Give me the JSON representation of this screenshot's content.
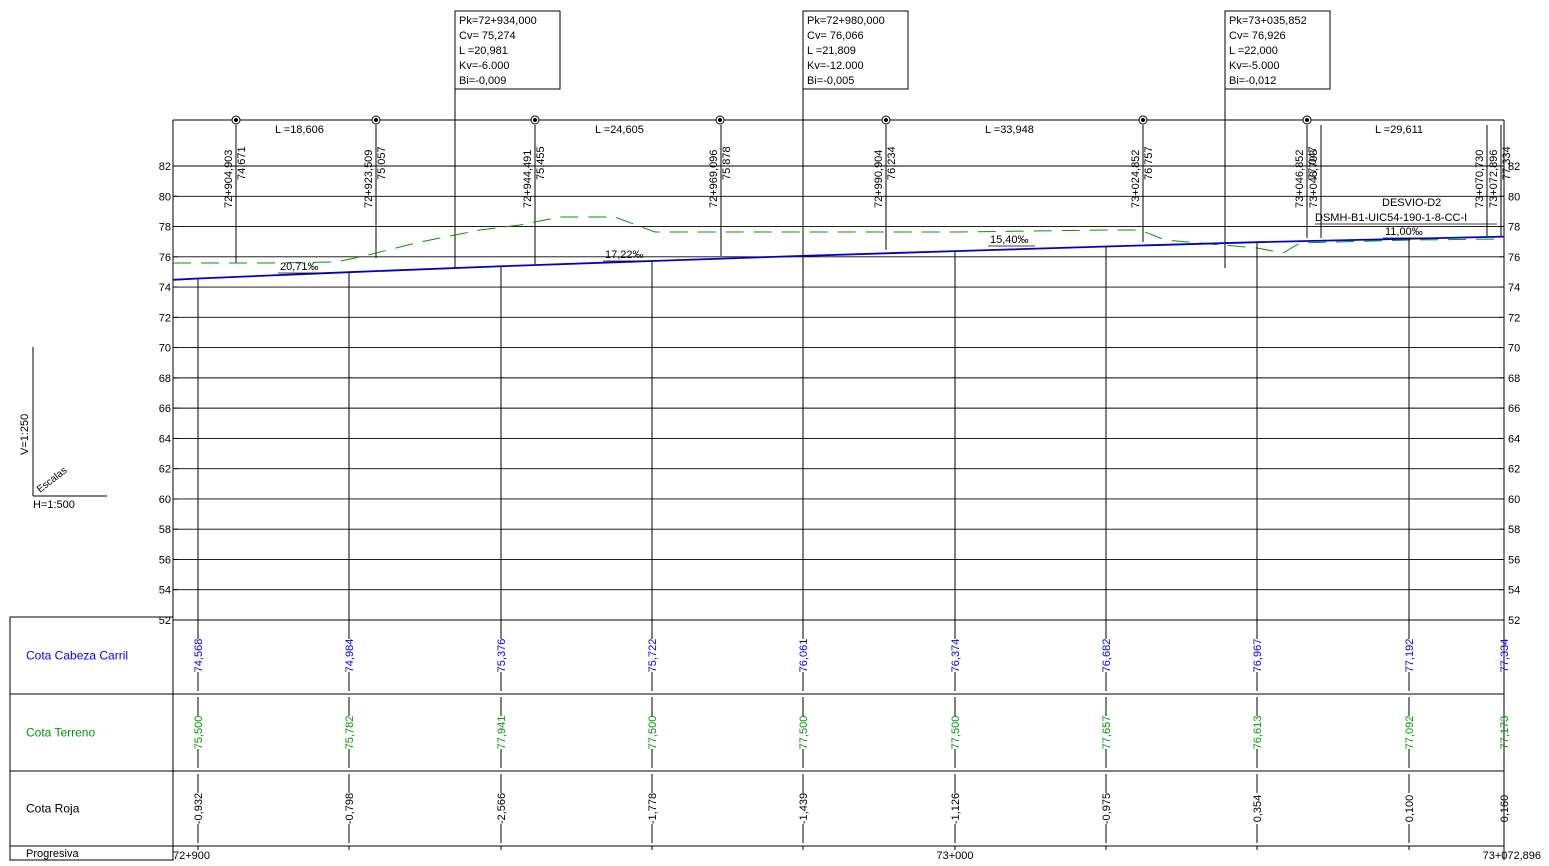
{
  "scales": {
    "vertical": "V=1:250",
    "horizontal": "H=1:500",
    "label": "Escalas"
  },
  "table_rows": {
    "cota_cabeza": "Cota Cabeza Carril",
    "cota_terreno": "Cota Terreno",
    "cota_roja": "Cota Roja",
    "progresiva": "Progresiva"
  },
  "colors": {
    "rail": "#0000cc",
    "terrain": "#009900",
    "lines": "#000000",
    "rail_text": "#0000ff",
    "terrain_text": "#009900"
  },
  "curves": [
    {
      "pk": "Pk=72+934,000",
      "cv": "Cv= 75,274",
      "l": "L =20,981",
      "kv": "Kv=-6.000",
      "bi": "Bi=-0,009"
    },
    {
      "pk": "Pk=72+980,000",
      "cv": "Cv= 76,066",
      "l": "L =21,809",
      "kv": "Kv=-12.000",
      "bi": "Bi=-0,005"
    },
    {
      "pk": "Pk=73+035,852",
      "cv": "Cv= 76,926",
      "l": "L =22,000",
      "kv": "Kv=-5.000",
      "bi": "Bi=-0,012"
    }
  ],
  "segment_lengths": [
    "L =18,606",
    "L =24,605",
    "L =33,948",
    "L =29,611"
  ],
  "station_labels": [
    {
      "pk": "72+904,903",
      "elev": "74,671"
    },
    {
      "pk": "72+923,509",
      "elev": "75,057"
    },
    {
      "pk": "72+944,491",
      "elev": "75,455"
    },
    {
      "pk": "72+969,096",
      "elev": "75,878"
    },
    {
      "pk": "72+990,904",
      "elev": "76,234"
    },
    {
      "pk": "73+024,852",
      "elev": "76,757"
    },
    {
      "pk": "73+046,852",
      "elev": "77,047"
    },
    {
      "pk": "73+048,703",
      "elev": ""
    },
    {
      "pk": "73+070,730",
      "elev": ""
    },
    {
      "pk": "73+072,896",
      "elev": "77,334"
    }
  ],
  "grades": [
    "20,71‰",
    "17,22‰",
    "15,40‰",
    "11,00‰"
  ],
  "desvio": {
    "name": "DESVIO-D2",
    "code": "DSMH-B1-UIC54-190-1-8-CC-I"
  },
  "y_axis_ticks": [
    "82",
    "80",
    "78",
    "76",
    "74",
    "72",
    "70",
    "68",
    "66",
    "64",
    "62",
    "60",
    "58",
    "56",
    "54",
    "52"
  ],
  "chart_data": {
    "type": "line",
    "xlabel": "Progresiva",
    "ylim": [
      52,
      82
    ],
    "x_ticks": [
      "72+900",
      "73+000",
      "73+072,896"
    ],
    "series": [
      {
        "name": "Cota Cabeza Carril",
        "values": [
          "74,568",
          "74,984",
          "75,376",
          "75,722",
          "76,061",
          "76,374",
          "76,682",
          "76,967",
          "77,192",
          "77,334"
        ]
      },
      {
        "name": "Cota Terreno",
        "values": [
          "75,500",
          "75,782",
          "77,941",
          "77,500",
          "77,500",
          "77,500",
          "77,657",
          "76,613",
          "77,092",
          "77,173"
        ]
      },
      {
        "name": "Cota Roja",
        "values": [
          "-0,932",
          "-0,798",
          "-2,566",
          "-1,778",
          "-1,439",
          "-1,126",
          "-0,975",
          "0,354",
          "0,100",
          "0,160"
        ]
      }
    ]
  }
}
